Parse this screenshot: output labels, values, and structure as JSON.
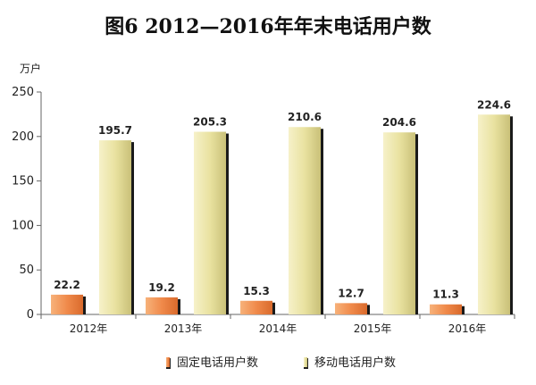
{
  "chart_data": {
    "type": "bar",
    "title": "图6    2012—2016年年末电话用户数",
    "unit": "万户",
    "categories": [
      "2012年",
      "2013年",
      "2014年",
      "2015年",
      "2016年"
    ],
    "series": [
      {
        "name": "固定电话用户数",
        "values": [
          22.2,
          19.2,
          15.3,
          12.7,
          11.3
        ],
        "color": "#f08a4b"
      },
      {
        "name": "移动电话用户数",
        "values": [
          195.7,
          205.3,
          210.6,
          204.6,
          224.6
        ],
        "color": "#e9e2a0"
      }
    ],
    "ylim": [
      0,
      250
    ],
    "yticks": [
      0,
      50,
      100,
      150,
      200,
      250
    ],
    "grid": false,
    "legend": "bottom"
  }
}
